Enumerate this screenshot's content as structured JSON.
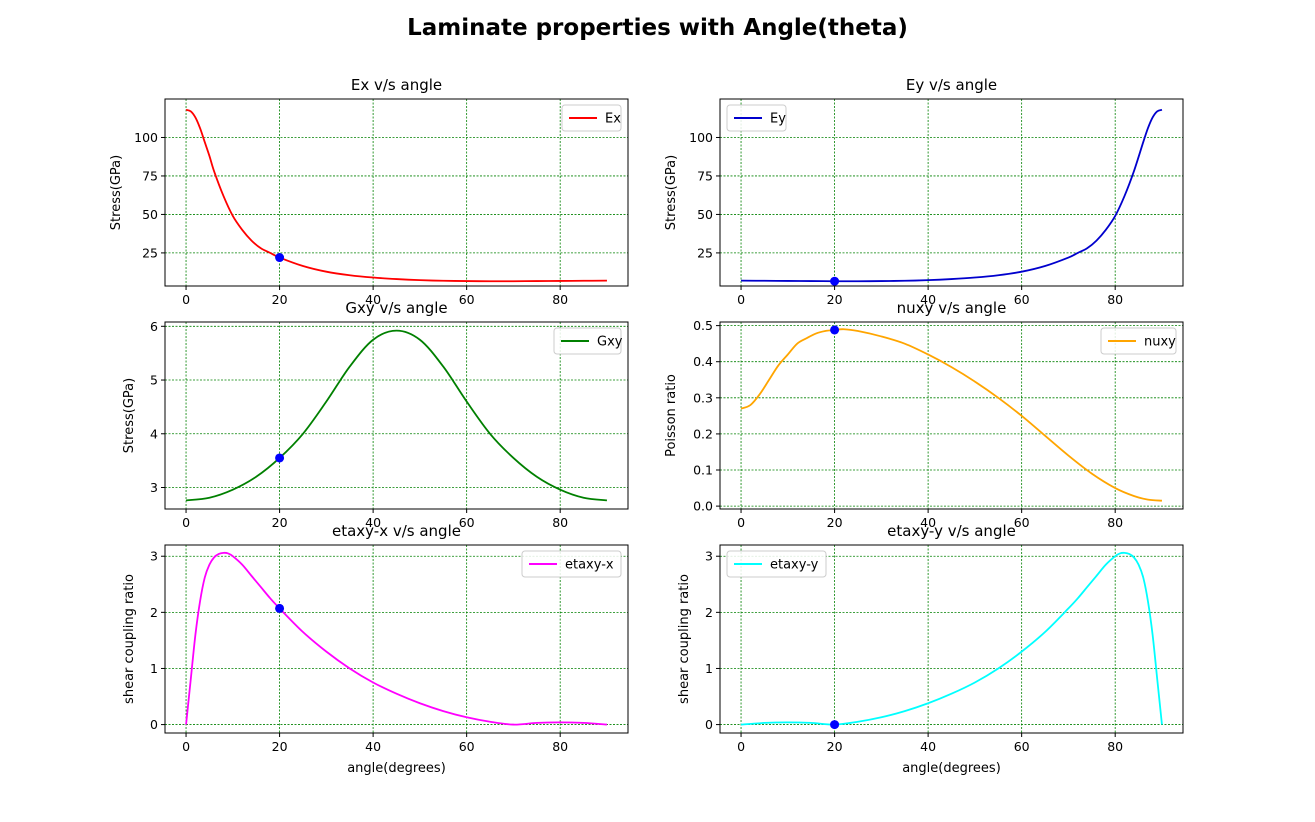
{
  "title": "Laminate properties with Angle(theta)",
  "chart_data": [
    {
      "type": "line",
      "title": "Ex v/s angle",
      "xlabel": "",
      "ylabel": "Stress(GPa)",
      "xlim": [
        -4.5,
        94.5
      ],
      "ylim": [
        3.5,
        125
      ],
      "xticks": [
        0,
        20,
        40,
        60,
        80
      ],
      "yticks": [
        25,
        50,
        75,
        100
      ],
      "grid": true,
      "legend_position": "upper right",
      "series": [
        {
          "name": "Ex",
          "color": "#ff0000",
          "x": [
            0,
            1,
            2,
            3,
            4,
            5,
            6,
            8,
            10,
            12,
            14,
            16,
            18,
            20,
            25,
            30,
            35,
            40,
            45,
            50,
            55,
            60,
            65,
            70,
            75,
            80,
            85,
            90
          ],
          "y": [
            118,
            117,
            113,
            106,
            97,
            88,
            78,
            62,
            49,
            40,
            33,
            28,
            25,
            22,
            16.5,
            12.8,
            10.5,
            9.0,
            8.0,
            7.3,
            6.9,
            6.7,
            6.6,
            6.6,
            6.7,
            6.8,
            6.9,
            7.0
          ]
        }
      ],
      "marker": {
        "x": 20,
        "y": 22,
        "color": "#0000ff"
      }
    },
    {
      "type": "line",
      "title": "Ey v/s angle",
      "xlabel": "",
      "ylabel": "Stress(GPa)",
      "xlim": [
        -4.5,
        94.5
      ],
      "ylim": [
        3.5,
        125
      ],
      "xticks": [
        0,
        20,
        40,
        60,
        80
      ],
      "yticks": [
        25,
        50,
        75,
        100
      ],
      "grid": true,
      "legend_position": "upper left",
      "series": [
        {
          "name": "Ey",
          "color": "#0000cd",
          "x": [
            0,
            5,
            10,
            15,
            20,
            25,
            30,
            35,
            40,
            45,
            50,
            55,
            60,
            65,
            70,
            72,
            74,
            76,
            78,
            80,
            82,
            84,
            86,
            87,
            88,
            89,
            90
          ],
          "y": [
            7.0,
            6.9,
            6.8,
            6.7,
            6.6,
            6.6,
            6.7,
            6.9,
            7.3,
            8.0,
            9.0,
            10.5,
            12.8,
            16.5,
            22,
            25,
            28,
            33,
            40,
            49,
            62,
            78,
            97,
            106,
            113,
            117,
            118
          ]
        }
      ],
      "marker": {
        "x": 20,
        "y": 6.6,
        "color": "#0000ff"
      }
    },
    {
      "type": "line",
      "title": "Gxy v/s angle",
      "xlabel": "",
      "ylabel": "Stress(GPa)",
      "xlim": [
        -4.5,
        94.5
      ],
      "ylim": [
        2.6,
        6.08
      ],
      "xticks": [
        0,
        20,
        40,
        60,
        80
      ],
      "yticks": [
        3,
        4,
        5,
        6
      ],
      "grid": true,
      "legend_position": "upper right",
      "series": [
        {
          "name": "Gxy",
          "color": "#008000",
          "x": [
            0,
            5,
            10,
            15,
            20,
            25,
            30,
            35,
            40,
            45,
            50,
            55,
            60,
            65,
            70,
            75,
            80,
            85,
            90
          ],
          "y": [
            2.76,
            2.81,
            2.96,
            3.2,
            3.55,
            4.0,
            4.6,
            5.25,
            5.75,
            5.92,
            5.75,
            5.25,
            4.6,
            4.0,
            3.55,
            3.2,
            2.96,
            2.81,
            2.76
          ]
        }
      ],
      "marker": {
        "x": 20,
        "y": 3.55,
        "color": "#0000ff"
      }
    },
    {
      "type": "line",
      "title": "nuxy v/s angle",
      "xlabel": "",
      "ylabel": "Poisson ratio",
      "xlim": [
        -4.5,
        94.5
      ],
      "ylim": [
        -0.008,
        0.51
      ],
      "xticks": [
        0,
        20,
        40,
        60,
        80
      ],
      "yticks": [
        0.0,
        0.1,
        0.2,
        0.3,
        0.4,
        0.5
      ],
      "grid": true,
      "legend_position": "upper right",
      "series": [
        {
          "name": "nuxy",
          "color": "#ffa500",
          "x": [
            0,
            2,
            4,
            6,
            8,
            10,
            12,
            14,
            16,
            18,
            20,
            22,
            25,
            30,
            35,
            40,
            45,
            50,
            55,
            60,
            65,
            70,
            75,
            80,
            84,
            87,
            90
          ],
          "y": [
            0.27,
            0.28,
            0.31,
            0.35,
            0.39,
            0.42,
            0.45,
            0.465,
            0.478,
            0.485,
            0.488,
            0.49,
            0.485,
            0.47,
            0.45,
            0.42,
            0.385,
            0.345,
            0.3,
            0.25,
            0.195,
            0.14,
            0.09,
            0.05,
            0.028,
            0.018,
            0.015
          ]
        }
      ],
      "marker": {
        "x": 20,
        "y": 0.488,
        "color": "#0000ff"
      }
    },
    {
      "type": "line",
      "title": "etaxy-x v/s angle",
      "xlabel": "angle(degrees)",
      "ylabel": "shear coupling ratio",
      "xlim": [
        -4.5,
        94.5
      ],
      "ylim": [
        -0.15,
        3.2
      ],
      "xticks": [
        0,
        20,
        40,
        60,
        80
      ],
      "yticks": [
        0,
        1,
        2,
        3
      ],
      "grid": true,
      "legend_position": "upper right",
      "series": [
        {
          "name": "etaxy-x",
          "color": "#ff00ff",
          "x": [
            0,
            1,
            2,
            3,
            4,
            5,
            6,
            7,
            8,
            9,
            10,
            12,
            14,
            16,
            18,
            20,
            25,
            30,
            35,
            40,
            45,
            50,
            55,
            60,
            65,
            70,
            75,
            80,
            85,
            90
          ],
          "y": [
            0,
            0.8,
            1.6,
            2.2,
            2.62,
            2.85,
            2.98,
            3.04,
            3.06,
            3.05,
            3.0,
            2.85,
            2.65,
            2.45,
            2.25,
            2.07,
            1.65,
            1.3,
            1.0,
            0.75,
            0.55,
            0.38,
            0.24,
            0.13,
            0.05,
            0.0,
            0.03,
            0.04,
            0.03,
            0.0
          ]
        }
      ],
      "marker": {
        "x": 20,
        "y": 2.07,
        "color": "#0000ff"
      }
    },
    {
      "type": "line",
      "title": "etaxy-y v/s angle",
      "xlabel": "angle(degrees)",
      "ylabel": "shear coupling ratio",
      "xlim": [
        -4.5,
        94.5
      ],
      "ylim": [
        -0.15,
        3.2
      ],
      "xticks": [
        0,
        20,
        40,
        60,
        80
      ],
      "yticks": [
        0,
        1,
        2,
        3
      ],
      "grid": true,
      "legend_position": "upper left",
      "series": [
        {
          "name": "etaxy-y",
          "color": "#00ffff",
          "x": [
            0,
            5,
            10,
            15,
            20,
            25,
            30,
            35,
            40,
            45,
            50,
            55,
            60,
            65,
            70,
            72,
            74,
            76,
            78,
            80,
            81,
            82,
            83,
            84,
            85,
            86,
            87,
            88,
            89,
            90
          ],
          "y": [
            0.0,
            0.03,
            0.04,
            0.03,
            0.0,
            0.05,
            0.13,
            0.24,
            0.38,
            0.55,
            0.75,
            1.0,
            1.3,
            1.65,
            2.07,
            2.25,
            2.45,
            2.65,
            2.85,
            3.0,
            3.05,
            3.06,
            3.04,
            2.98,
            2.85,
            2.62,
            2.2,
            1.6,
            0.8,
            0.0
          ]
        }
      ],
      "marker": {
        "x": 20,
        "y": 0.0,
        "color": "#0000ff"
      }
    }
  ]
}
